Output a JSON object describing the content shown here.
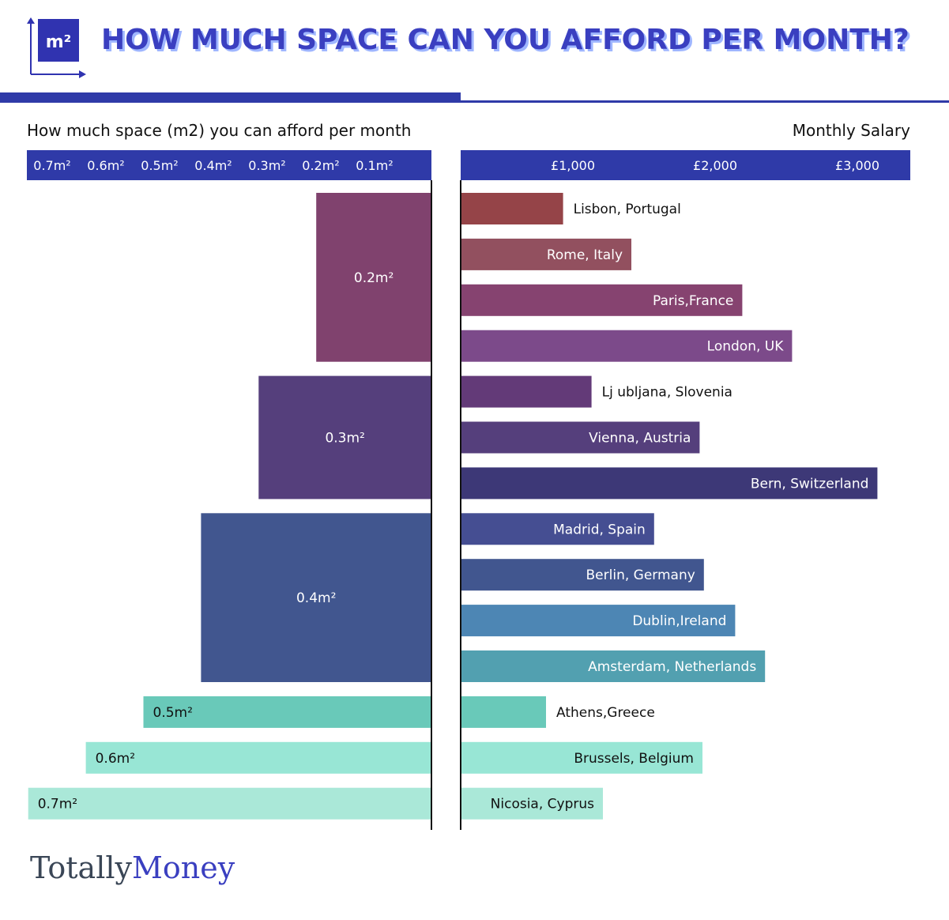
{
  "header": {
    "badge_text": "m²",
    "title": "HOW MUCH SPACE CAN YOU AFFORD PER MONTH?"
  },
  "colors": {
    "accent": "#2f3aa8",
    "title": "#3a3fc0"
  },
  "brand": {
    "part1": "Totally",
    "part2": "Money"
  },
  "chart_data": [
    {
      "type": "bar",
      "orientation": "horizontal",
      "title": "How much space (m2) you can afford per month",
      "tick_labels": [
        "0.7m²",
        "0.6m²",
        "0.5m²",
        "0.4m²",
        "0.3m²",
        "0.2m²",
        "0.1m²"
      ],
      "xlim": [
        0,
        0.75
      ],
      "axis_direction": "reversed",
      "groups": [
        {
          "value": 0.2,
          "label": "0.2m²",
          "color": "#80426e",
          "cities": [
            "Lisbon, Portugal",
            "Rome, Italy",
            "Paris,France",
            "London, UK"
          ]
        },
        {
          "value": 0.3,
          "label": "0.3m²",
          "color": "#553f7c",
          "cities": [
            "Lj ubljana, Slovenia",
            "Vienna, Austria",
            "Bern, Switzerland"
          ]
        },
        {
          "value": 0.4,
          "label": "0.4m²",
          "color": "#41568f",
          "cities": [
            "Madrid, Spain",
            "Berlin, Germany",
            "Dublin,Ireland",
            "Amsterdam, Netherlands"
          ]
        },
        {
          "value": 0.5,
          "label": "0.5m²",
          "color": "#69c9b9",
          "cities": [
            "Athens,Greece"
          ]
        },
        {
          "value": 0.6,
          "label": "0.6m²",
          "color": "#98e6d5",
          "cities": [
            "Brussels, Belgium"
          ]
        },
        {
          "value": 0.7,
          "label": "0.7m²",
          "color": "#aae8d8",
          "cities": [
            "Nicosia, Cyprus"
          ]
        }
      ]
    },
    {
      "type": "bar",
      "orientation": "horizontal",
      "title": "Monthly Salary",
      "tick_labels": [
        "£1,000",
        "£2,000",
        "£3,000"
      ],
      "ticks": [
        1000,
        2000,
        3000
      ],
      "xlim": [
        0,
        3150
      ],
      "categories": [
        "Lisbon, Portugal",
        "Rome, Italy",
        "Paris,France",
        "London, UK",
        "Lj ubljana, Slovenia",
        "Vienna, Austria",
        "Bern, Switzerland",
        "Madrid, Spain",
        "Berlin, Germany",
        "Dublin,Ireland",
        "Amsterdam, Netherlands",
        "Athens,Greece",
        "Brussels, Belgium",
        "Nicosia, Cyprus"
      ],
      "values": [
        720,
        1200,
        1980,
        2330,
        920,
        1680,
        2930,
        1360,
        1710,
        1930,
        2140,
        600,
        1700,
        1000
      ],
      "colors": [
        "#954448",
        "#92505f",
        "#864370",
        "#7c4a8a",
        "#633a78",
        "#553f7c",
        "#3d3877",
        "#454e92",
        "#41568f",
        "#4d86b4",
        "#52a0b0",
        "#69c9b9",
        "#98e6d5",
        "#aae8d8"
      ],
      "label_inside": [
        false,
        true,
        true,
        true,
        false,
        true,
        true,
        true,
        true,
        true,
        true,
        false,
        true,
        true
      ],
      "label_color": [
        "#111111",
        "#ffffff",
        "#ffffff",
        "#ffffff",
        "#111111",
        "#ffffff",
        "#ffffff",
        "#ffffff",
        "#ffffff",
        "#ffffff",
        "#ffffff",
        "#111111",
        "#111111",
        "#111111"
      ]
    }
  ]
}
